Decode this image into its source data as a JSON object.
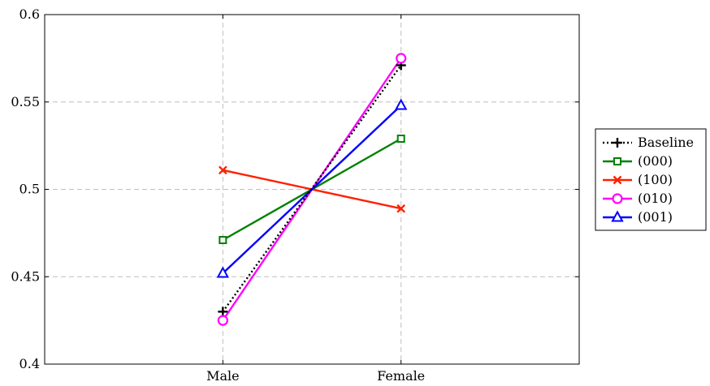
{
  "chart_data": {
    "type": "line",
    "title": "",
    "xlabel": "",
    "ylabel": "",
    "categories": [
      "Male",
      "Female"
    ],
    "ylim": [
      0.4,
      0.6
    ],
    "yticks": [
      0.4,
      0.45,
      0.5,
      0.55,
      0.6
    ],
    "ytick_labels": [
      "0.4",
      "0.45",
      "0.5",
      "0.55",
      "0.6"
    ],
    "grid": true,
    "legend_position": "outside-right",
    "series": [
      {
        "name": "Baseline",
        "values": [
          0.43,
          0.571
        ],
        "color": "#000000",
        "marker": "plus",
        "dash": "dotted"
      },
      {
        "name": "(000)",
        "values": [
          0.471,
          0.529
        ],
        "color": "#008000",
        "marker": "square",
        "dash": "solid"
      },
      {
        "name": "(100)",
        "values": [
          0.511,
          0.489
        ],
        "color": "#ff2000",
        "marker": "x",
        "dash": "solid"
      },
      {
        "name": "(010)",
        "values": [
          0.425,
          0.575
        ],
        "color": "#ff00ff",
        "marker": "circle",
        "dash": "solid"
      },
      {
        "name": "(001)",
        "values": [
          0.452,
          0.548
        ],
        "color": "#0000ff",
        "marker": "triangle",
        "dash": "solid"
      }
    ]
  }
}
